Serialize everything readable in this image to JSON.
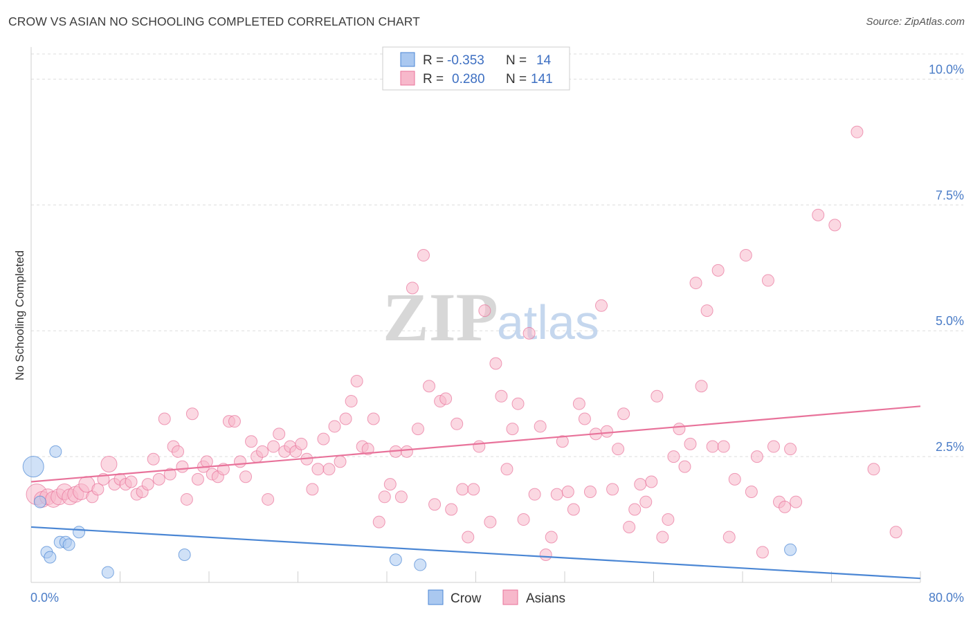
{
  "header": {
    "title": "CROW VS ASIAN NO SCHOOLING COMPLETED CORRELATION CHART",
    "source": "Source: ZipAtlas.com"
  },
  "watermark": {
    "zip": "ZIP",
    "atlas": "atlas"
  },
  "colors": {
    "crow": "#4a86d4",
    "crow_fill": "#aac8f0",
    "asians": "#e8729a",
    "asians_fill": "#f7b8cb",
    "tick_text": "#4a7cc7",
    "grid": "#dddddd"
  },
  "stats": {
    "crow": {
      "r_label": "R =",
      "r_value": "-0.353",
      "n_label": "N =",
      "n_value": "14"
    },
    "asians": {
      "r_label": "R =",
      "r_value": "0.280",
      "n_label": "N =",
      "n_value": "141"
    }
  },
  "chart_data": {
    "type": "scatter",
    "title": "CROW VS ASIAN NO SCHOOLING COMPLETED CORRELATION CHART",
    "xlabel": "",
    "ylabel": "No Schooling Completed",
    "xlim": [
      0,
      80
    ],
    "ylim": [
      0,
      10.5
    ],
    "x_tick_labels": [
      "0.0%",
      "80.0%"
    ],
    "y_ticks": [
      2.5,
      5.0,
      7.5,
      10.0
    ],
    "y_tick_labels": [
      "2.5%",
      "5.0%",
      "7.5%",
      "10.0%"
    ],
    "grid": true,
    "legend": [
      "Crow",
      "Asians"
    ],
    "series": [
      {
        "name": "Crow",
        "trend": [
          [
            0,
            1.1
          ],
          [
            80,
            0.08
          ]
        ],
        "points": [
          [
            0.2,
            2.3,
            3
          ],
          [
            2.2,
            2.6,
            1
          ],
          [
            0.8,
            1.6,
            1
          ],
          [
            1.4,
            0.6,
            1
          ],
          [
            1.7,
            0.5,
            1
          ],
          [
            2.6,
            0.8,
            1
          ],
          [
            3.1,
            0.8,
            1
          ],
          [
            3.4,
            0.75,
            1
          ],
          [
            4.3,
            1.0,
            1
          ],
          [
            6.9,
            0.2,
            1
          ],
          [
            13.8,
            0.55,
            1
          ],
          [
            32.8,
            0.45,
            1
          ],
          [
            35.0,
            0.35,
            1
          ],
          [
            68.3,
            0.65,
            1
          ]
        ]
      },
      {
        "name": "Asians",
        "trend": [
          [
            0,
            2.0
          ],
          [
            80,
            3.5
          ]
        ],
        "points": [
          [
            0.5,
            1.75,
            3
          ],
          [
            1.0,
            1.65,
            2
          ],
          [
            1.5,
            1.7,
            2
          ],
          [
            2.0,
            1.65,
            2
          ],
          [
            2.5,
            1.7,
            2
          ],
          [
            3.0,
            1.8,
            2
          ],
          [
            3.5,
            1.7,
            2
          ],
          [
            4.0,
            1.75,
            2
          ],
          [
            4.5,
            1.8,
            2
          ],
          [
            5.0,
            1.95,
            2
          ],
          [
            5.5,
            1.7,
            1
          ],
          [
            6.0,
            1.85,
            1
          ],
          [
            6.5,
            2.05,
            1
          ],
          [
            7.0,
            2.35,
            2
          ],
          [
            7.5,
            1.95,
            1
          ],
          [
            8.0,
            2.05,
            1
          ],
          [
            8.5,
            1.95,
            1
          ],
          [
            9.0,
            2.0,
            1
          ],
          [
            9.5,
            1.75,
            1
          ],
          [
            10.0,
            1.8,
            1
          ],
          [
            10.5,
            1.95,
            1
          ],
          [
            11.0,
            2.45,
            1
          ],
          [
            11.5,
            2.05,
            1
          ],
          [
            12.0,
            3.25,
            1
          ],
          [
            12.5,
            2.15,
            1
          ],
          [
            12.8,
            2.7,
            1
          ],
          [
            13.2,
            2.6,
            1
          ],
          [
            13.6,
            2.3,
            1
          ],
          [
            14.0,
            1.65,
            1
          ],
          [
            14.5,
            3.35,
            1
          ],
          [
            15.0,
            2.05,
            1
          ],
          [
            15.5,
            2.3,
            1
          ],
          [
            15.8,
            2.4,
            1
          ],
          [
            16.3,
            2.15,
            1
          ],
          [
            16.8,
            2.1,
            1
          ],
          [
            17.3,
            2.25,
            1
          ],
          [
            17.8,
            3.2,
            1
          ],
          [
            18.3,
            3.2,
            1
          ],
          [
            18.8,
            2.4,
            1
          ],
          [
            19.3,
            2.1,
            1
          ],
          [
            19.8,
            2.8,
            1
          ],
          [
            20.3,
            2.5,
            1
          ],
          [
            20.8,
            2.6,
            1
          ],
          [
            21.3,
            1.65,
            1
          ],
          [
            21.8,
            2.7,
            1
          ],
          [
            22.3,
            2.95,
            1
          ],
          [
            22.8,
            2.6,
            1
          ],
          [
            23.3,
            2.7,
            1
          ],
          [
            23.8,
            2.6,
            1
          ],
          [
            24.3,
            2.75,
            1
          ],
          [
            24.8,
            2.45,
            1
          ],
          [
            25.3,
            1.85,
            1
          ],
          [
            25.8,
            2.25,
            1
          ],
          [
            26.3,
            2.85,
            1
          ],
          [
            26.8,
            2.25,
            1
          ],
          [
            27.3,
            3.1,
            1
          ],
          [
            27.8,
            2.4,
            1
          ],
          [
            28.3,
            3.25,
            1
          ],
          [
            28.8,
            3.6,
            1
          ],
          [
            29.3,
            4.0,
            1
          ],
          [
            29.8,
            2.7,
            1
          ],
          [
            30.3,
            2.65,
            1
          ],
          [
            30.8,
            3.25,
            1
          ],
          [
            31.3,
            1.2,
            1
          ],
          [
            31.8,
            1.7,
            1
          ],
          [
            32.3,
            1.95,
            1
          ],
          [
            32.8,
            2.6,
            1
          ],
          [
            33.3,
            1.7,
            1
          ],
          [
            33.8,
            2.6,
            1
          ],
          [
            34.3,
            5.85,
            1
          ],
          [
            34.8,
            3.05,
            1
          ],
          [
            35.3,
            6.5,
            1
          ],
          [
            35.8,
            3.9,
            1
          ],
          [
            36.3,
            1.55,
            1
          ],
          [
            36.8,
            3.6,
            1
          ],
          [
            37.3,
            3.65,
            1
          ],
          [
            37.8,
            1.45,
            1
          ],
          [
            38.3,
            3.15,
            1
          ],
          [
            38.8,
            1.85,
            1
          ],
          [
            39.3,
            0.9,
            1
          ],
          [
            39.8,
            1.85,
            1
          ],
          [
            40.3,
            2.7,
            1
          ],
          [
            40.8,
            5.4,
            1
          ],
          [
            41.3,
            1.2,
            1
          ],
          [
            41.8,
            4.35,
            1
          ],
          [
            42.3,
            3.7,
            1
          ],
          [
            42.8,
            2.25,
            1
          ],
          [
            43.3,
            3.05,
            1
          ],
          [
            43.8,
            3.55,
            1
          ],
          [
            44.3,
            1.25,
            1
          ],
          [
            44.8,
            4.95,
            1
          ],
          [
            45.3,
            1.75,
            1
          ],
          [
            45.8,
            3.1,
            1
          ],
          [
            46.3,
            0.55,
            1
          ],
          [
            46.8,
            0.9,
            1
          ],
          [
            47.3,
            1.75,
            1
          ],
          [
            47.8,
            2.8,
            1
          ],
          [
            48.3,
            1.8,
            1
          ],
          [
            48.8,
            1.45,
            1
          ],
          [
            49.3,
            3.55,
            1
          ],
          [
            49.8,
            3.25,
            1
          ],
          [
            50.3,
            1.8,
            1
          ],
          [
            50.8,
            2.95,
            1
          ],
          [
            51.3,
            5.5,
            1
          ],
          [
            51.8,
            3.0,
            1
          ],
          [
            52.3,
            1.85,
            1
          ],
          [
            52.8,
            2.65,
            1
          ],
          [
            53.3,
            3.35,
            1
          ],
          [
            53.8,
            1.1,
            1
          ],
          [
            54.3,
            1.45,
            1
          ],
          [
            54.8,
            1.95,
            1
          ],
          [
            55.3,
            1.6,
            1
          ],
          [
            55.8,
            2.0,
            1
          ],
          [
            56.3,
            3.7,
            1
          ],
          [
            56.8,
            0.9,
            1
          ],
          [
            57.3,
            1.25,
            1
          ],
          [
            57.8,
            2.5,
            1
          ],
          [
            58.3,
            3.05,
            1
          ],
          [
            58.8,
            2.3,
            1
          ],
          [
            59.3,
            2.75,
            1
          ],
          [
            59.8,
            5.95,
            1
          ],
          [
            60.3,
            3.9,
            1
          ],
          [
            60.8,
            5.4,
            1
          ],
          [
            61.3,
            2.7,
            1
          ],
          [
            61.8,
            6.2,
            1
          ],
          [
            62.3,
            2.7,
            1
          ],
          [
            62.8,
            0.9,
            1
          ],
          [
            63.3,
            2.05,
            1
          ],
          [
            64.3,
            6.5,
            1
          ],
          [
            64.8,
            1.8,
            1
          ],
          [
            65.3,
            2.5,
            1
          ],
          [
            65.8,
            0.6,
            1
          ],
          [
            66.3,
            6.0,
            1
          ],
          [
            66.8,
            2.7,
            1
          ],
          [
            67.3,
            1.6,
            1
          ],
          [
            67.8,
            1.5,
            1
          ],
          [
            68.3,
            2.65,
            1
          ],
          [
            68.8,
            1.6,
            1
          ],
          [
            70.8,
            7.3,
            1
          ],
          [
            72.3,
            7.1,
            1
          ],
          [
            74.3,
            8.95,
            1
          ],
          [
            75.8,
            2.25,
            1
          ],
          [
            77.8,
            1.0,
            1
          ]
        ]
      }
    ]
  }
}
